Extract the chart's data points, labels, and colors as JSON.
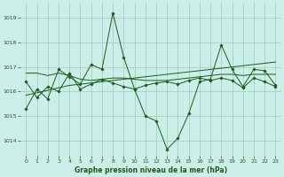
{
  "title": "Graphe pression niveau de la mer (hPa)",
  "bg_color": "#cceee8",
  "grid_color": "#99ccbb",
  "line_color": "#1a5c1a",
  "xlim": [
    -0.5,
    23.5
  ],
  "ylim": [
    1013.4,
    1019.6
  ],
  "yticks": [
    1014,
    1015,
    1016,
    1017,
    1018,
    1019
  ],
  "xticks": [
    0,
    1,
    2,
    3,
    4,
    5,
    6,
    7,
    8,
    9,
    10,
    11,
    12,
    13,
    14,
    15,
    16,
    17,
    18,
    19,
    20,
    21,
    22,
    23
  ],
  "series": [
    [
      1015.3,
      1016.1,
      1015.7,
      1016.9,
      1016.6,
      1016.3,
      1017.1,
      1016.9,
      1019.2,
      1017.4,
      1016.1,
      1015.0,
      1014.8,
      1013.65,
      1014.1,
      1015.1,
      1016.4,
      1016.5,
      1017.9,
      1016.9,
      1016.2,
      1016.9,
      1016.85,
      1016.25
    ],
    [
      1016.75,
      1016.75,
      1016.65,
      1016.75,
      1016.65,
      1016.5,
      1016.45,
      1016.5,
      1016.55,
      1016.55,
      1016.5,
      1016.45,
      1016.45,
      1016.45,
      1016.5,
      1016.55,
      1016.6,
      1016.65,
      1016.7,
      1016.7,
      1016.65,
      1016.7,
      1016.7,
      1016.7
    ],
    [
      1015.85,
      1015.95,
      1016.05,
      1016.15,
      1016.25,
      1016.3,
      1016.35,
      1016.4,
      1016.45,
      1016.5,
      1016.55,
      1016.6,
      1016.65,
      1016.7,
      1016.75,
      1016.8,
      1016.85,
      1016.9,
      1016.95,
      1017.0,
      1017.05,
      1017.1,
      1017.15,
      1017.2
    ],
    [
      1016.4,
      1015.75,
      1016.2,
      1016.0,
      1016.75,
      1016.1,
      1016.3,
      1016.5,
      1016.35,
      1016.2,
      1016.1,
      1016.25,
      1016.35,
      1016.4,
      1016.3,
      1016.45,
      1016.55,
      1016.45,
      1016.55,
      1016.45,
      1016.15,
      1016.55,
      1016.4,
      1016.2
    ]
  ],
  "series_lw": [
    0.7,
    0.7,
    0.7,
    0.7
  ],
  "has_markers": [
    true,
    false,
    false,
    true
  ],
  "marker": "D",
  "markersize": 1.8,
  "tick_fontsize": 4.5,
  "xlabel_fontsize": 5.5,
  "xlabel_fontweight": "bold"
}
